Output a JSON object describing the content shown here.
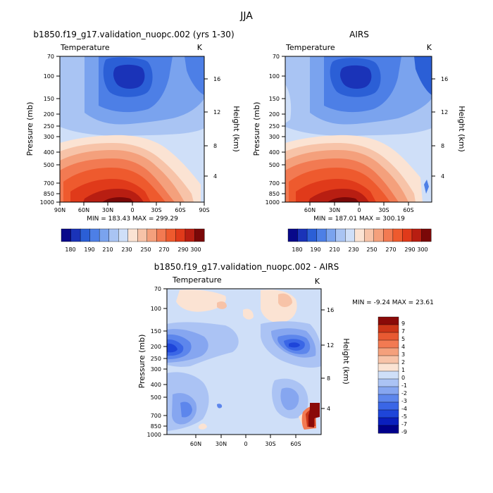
{
  "figure_title": "JJA",
  "chart_data": [
    {
      "type": "heatmap",
      "title": "b1850.f19_g17.validation_nuopc.002 (yrs 1-30)",
      "subtitle": "Temperature",
      "units": "K",
      "xlabel": "",
      "ylabel": "Pressure (mb)",
      "y2label": "Height (km)",
      "x_ticks": [
        "90N",
        "60N",
        "30N",
        "0",
        "30S",
        "60S",
        "90S"
      ],
      "y_ticks": [
        "70",
        "100",
        "150",
        "200",
        "250",
        "300",
        "400",
        "500",
        "700",
        "850",
        "1000"
      ],
      "y2_ticks": [
        "16",
        "12",
        "8",
        "4"
      ],
      "stats": "MIN = 183.43   MAX = 299.29",
      "colorbar_labels": [
        "180",
        "190",
        "210",
        "230",
        "250",
        "270",
        "290",
        "300"
      ],
      "colorbar_levels": [
        180,
        185,
        190,
        200,
        210,
        220,
        230,
        240,
        250,
        260,
        270,
        280,
        290,
        295,
        300
      ],
      "min": 183.43,
      "max": 299.29
    },
    {
      "type": "heatmap",
      "title": "AIRS",
      "subtitle": "Temperature",
      "units": "K",
      "xlabel": "",
      "ylabel": "Pressure (mb)",
      "y2label": "Height (km)",
      "x_ticks": [
        "60N",
        "30N",
        "0",
        "30S",
        "60S"
      ],
      "y_ticks": [
        "70",
        "100",
        "150",
        "200",
        "250",
        "300",
        "400",
        "500",
        "700",
        "850",
        "1000"
      ],
      "y2_ticks": [
        "16",
        "12",
        "8",
        "4"
      ],
      "stats": "MIN = 187.01   MAX = 300.19",
      "colorbar_labels": [
        "180",
        "190",
        "210",
        "230",
        "250",
        "270",
        "290",
        "300"
      ],
      "colorbar_levels": [
        180,
        185,
        190,
        200,
        210,
        220,
        230,
        240,
        250,
        260,
        270,
        280,
        290,
        295,
        300
      ],
      "min": 187.01,
      "max": 300.19
    },
    {
      "type": "heatmap",
      "title": "b1850.f19_g17.validation_nuopc.002 - AIRS",
      "subtitle": "Temperature",
      "units": "K",
      "xlabel": "",
      "ylabel": "Pressure (mb)",
      "y2label": "Height (km)",
      "x_ticks": [
        "60N",
        "30N",
        "0",
        "30S",
        "60S"
      ],
      "y_ticks": [
        "70",
        "100",
        "150",
        "200",
        "250",
        "300",
        "400",
        "500",
        "700",
        "850",
        "1000"
      ],
      "y2_ticks": [
        "16",
        "12",
        "8",
        "4"
      ],
      "stats": "MIN =  -9.24  MAX =  23.61",
      "colorbar_labels": [
        "9",
        "7",
        "5",
        "4",
        "3",
        "2",
        "1",
        "0",
        "-1",
        "-2",
        "-3",
        "-4",
        "-5",
        "-7",
        "-9"
      ],
      "min": -9.24,
      "max": 23.61
    }
  ],
  "colors": {
    "abs_scale": [
      "#08088a",
      "#1a33b8",
      "#2b5fd6",
      "#4d7fe6",
      "#7aa3ee",
      "#a9c4f3",
      "#cfdff8",
      "#fbe3d3",
      "#f7c3a8",
      "#f4a07c",
      "#f27a52",
      "#ee5a2e",
      "#e03a1a",
      "#b81e12",
      "#7a0808"
    ],
    "diff_scale": [
      "#00008a",
      "#0a1fbd",
      "#1e45d9",
      "#3a66e6",
      "#5d86ec",
      "#86a6f0",
      "#abc3f4",
      "#cfdff8",
      "#fbe3d3",
      "#f7c3a8",
      "#f4a07c",
      "#f27a52",
      "#e85a32",
      "#cc3618",
      "#8a0a08"
    ]
  }
}
